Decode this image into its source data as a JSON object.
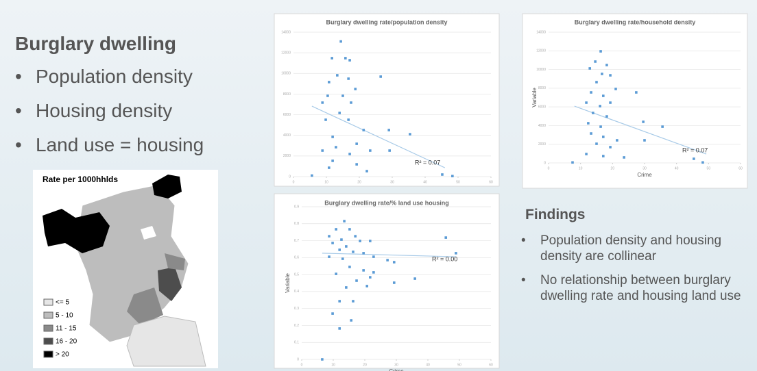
{
  "slide": {
    "heading": "Burglary dwelling",
    "bullets": [
      "Population density",
      "Housing density",
      "Land use = housing"
    ],
    "map": {
      "title": "Rate per 1000hhlds",
      "legend": [
        "<= 5",
        "5 - 10",
        "11 - 15",
        "16 - 20",
        "> 20"
      ]
    },
    "findings": {
      "title": "Findings",
      "bullets": [
        "Population density and housing density are collinear",
        "No relationship between burglary dwelling rate and housing land use"
      ]
    }
  },
  "chart_data": [
    {
      "type": "scatter",
      "title": "Burglary dwelling rate/population density",
      "color": "#5b9bd5",
      "grid": true,
      "annotation": "R² = 0.07",
      "x": [
        14.4,
        11.7,
        15.8,
        17.1,
        13.3,
        10.8,
        16.7,
        18.8,
        26.5,
        10.4,
        15,
        17.5,
        8.8,
        14,
        9.8,
        16.7,
        21.3,
        29,
        35.4,
        11.9,
        19.2,
        23.3,
        8.8,
        12.9,
        17.1,
        11.9,
        19.2,
        10.8,
        22.3,
        5.6,
        45.2,
        48.3,
        29.2
      ],
      "values": [
        13100,
        11480,
        11480,
        11280,
        9820,
        9160,
        9490,
        8490,
        9690,
        7830,
        7830,
        7170,
        7170,
        6170,
        5510,
        5510,
        4510,
        4510,
        4110,
        3850,
        3180,
        2520,
        2520,
        2850,
        2190,
        1530,
        1190,
        860,
        530,
        100,
        200,
        50,
        2520
      ],
      "trendline": {
        "x": [
          5.6,
          46
        ],
        "values": [
          6830,
          860
        ]
      },
      "xlim": [
        0,
        60
      ],
      "xticks": [
        0,
        10,
        20,
        30,
        40,
        50,
        60
      ],
      "ylim": [
        0,
        14000
      ],
      "yticks": [
        0,
        2000,
        4000,
        6000,
        8000,
        10000,
        12000,
        14000
      ]
    },
    {
      "type": "scatter",
      "title": "Burglary dwelling rate/household density",
      "color": "#5b9bd5",
      "grid": true,
      "annotation": "R² = 0.07",
      "xlabel": "Crime",
      "ylabel": "Variable",
      "x": [
        16.3,
        14.6,
        18.2,
        12.9,
        16.7,
        19.3,
        15,
        21,
        13.3,
        17.1,
        27.4,
        11.8,
        16.1,
        19.3,
        13.9,
        18.2,
        29.6,
        12.4,
        16.3,
        35.6,
        13.3,
        17.1,
        21.4,
        15,
        19.3,
        30,
        11.8,
        17.1,
        23.6,
        7.5,
        45.4,
        48.2
      ],
      "values": [
        11950,
        10850,
        10480,
        10120,
        9530,
        9380,
        8650,
        7920,
        7550,
        7180,
        7550,
        6450,
        6080,
        6450,
        5350,
        4980,
        4400,
        4250,
        3880,
        3880,
        3150,
        2790,
        2420,
        2050,
        1690,
        2420,
        950,
        730,
        590,
        50,
        440,
        50
      ],
      "trendline": {
        "x": [
          8.1,
          49.3
        ],
        "values": [
          6080,
          950
        ]
      },
      "xlim": [
        0,
        60
      ],
      "xticks": [
        0,
        10,
        20,
        30,
        40,
        50,
        60
      ],
      "ylim": [
        0,
        14000
      ],
      "yticks": [
        0,
        2000,
        4000,
        6000,
        8000,
        10000,
        12000,
        14000
      ]
    },
    {
      "type": "scatter",
      "title": "Burglary dwelling rate/% land use housing",
      "color": "#5b9bd5",
      "grid": true,
      "annotation": "R² = 0.00",
      "xlabel": "Crime",
      "ylabel": "Variable",
      "x": [
        13.5,
        10.9,
        15.2,
        8.7,
        12.6,
        17,
        9.8,
        14.1,
        18.5,
        21.7,
        12,
        16.3,
        19.6,
        8.7,
        13,
        22.8,
        27.2,
        29.3,
        45.7,
        48.9,
        15.2,
        19.6,
        10.9,
        22.8,
        17.4,
        21.7,
        35.9,
        29.3,
        14.1,
        20.7,
        12,
        16.3,
        9.8,
        15.7,
        12,
        6.5
      ],
      "values": [
        0.815,
        0.767,
        0.767,
        0.726,
        0.706,
        0.726,
        0.686,
        0.666,
        0.698,
        0.698,
        0.646,
        0.634,
        0.626,
        0.605,
        0.593,
        0.605,
        0.585,
        0.573,
        0.718,
        0.626,
        0.545,
        0.525,
        0.504,
        0.513,
        0.464,
        0.484,
        0.476,
        0.452,
        0.424,
        0.432,
        0.343,
        0.343,
        0.27,
        0.23,
        0.182,
        0
      ],
      "trendline": {
        "x": [
          6.5,
          48.9
        ],
        "values": [
          0.626,
          0.605
        ]
      },
      "xlim": [
        0,
        60
      ],
      "xticks": [
        0,
        10,
        20,
        30,
        40,
        50,
        60
      ],
      "ylim": [
        0,
        0.9
      ],
      "yticks": [
        0,
        0.1,
        0.2,
        0.3,
        0.4,
        0.5,
        0.6,
        0.7,
        0.8,
        0.9
      ]
    }
  ]
}
